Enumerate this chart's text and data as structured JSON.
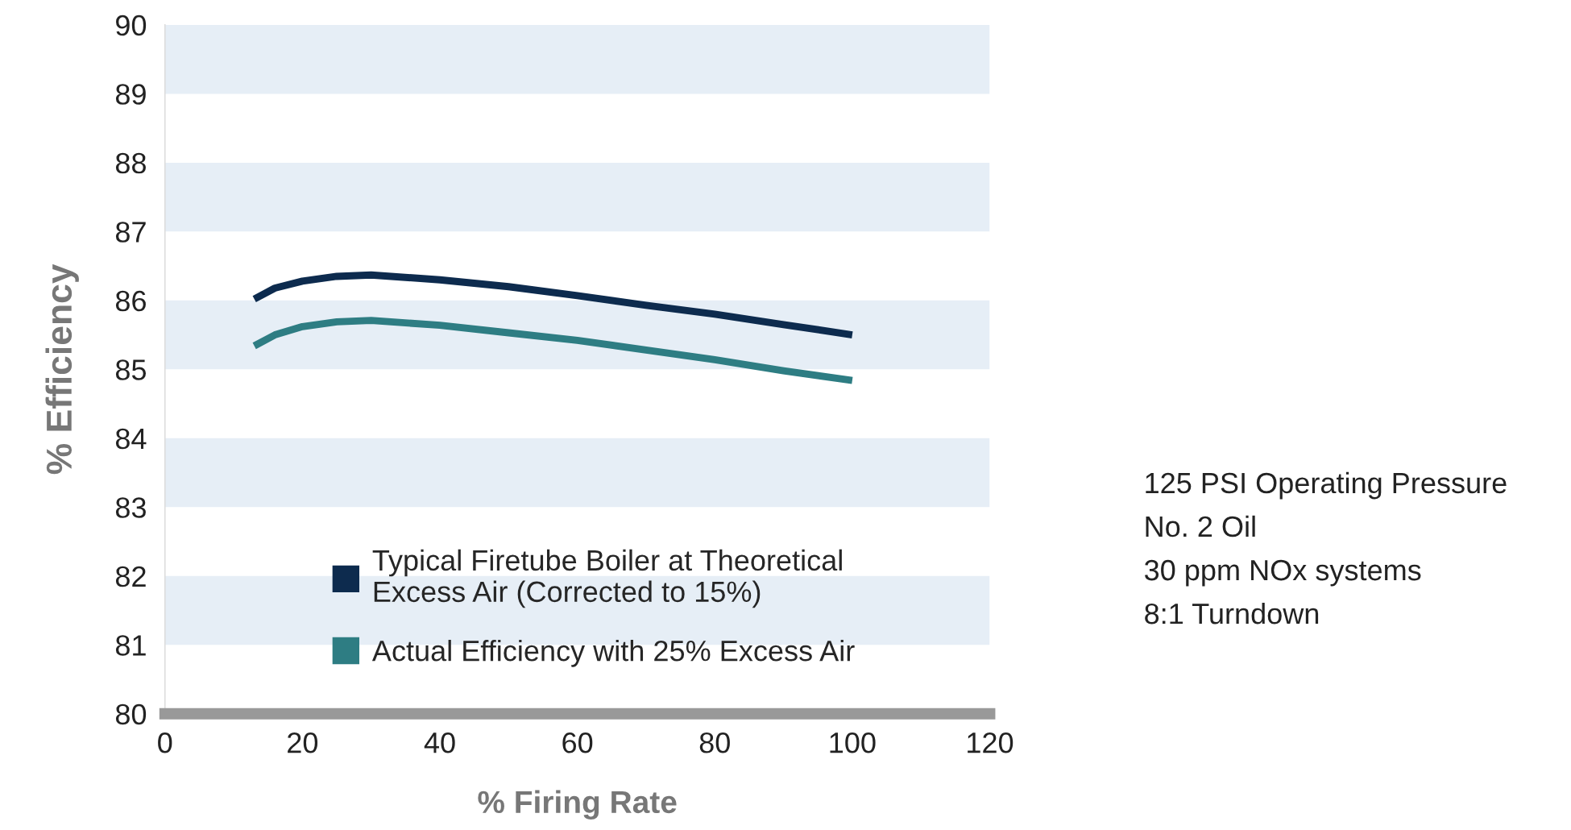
{
  "chart_data": {
    "type": "line",
    "xlabel": "% Firing Rate",
    "ylabel": "% Efficiency",
    "xlim": [
      0,
      120
    ],
    "xticks": [
      0,
      20,
      40,
      60,
      80,
      100,
      120
    ],
    "ylim": [
      80,
      90
    ],
    "yticks": [
      80,
      81,
      82,
      83,
      84,
      85,
      86,
      87,
      88,
      89,
      90
    ],
    "series": [
      {
        "name": "Typical Firetube Boiler at Theoretical\nExcess Air (Corrected to 15%)",
        "color": "#0d2b4e",
        "x": [
          13,
          16,
          20,
          25,
          30,
          40,
          50,
          60,
          70,
          80,
          90,
          100
        ],
        "values": [
          86.02,
          86.18,
          86.28,
          86.35,
          86.37,
          86.3,
          86.2,
          86.07,
          85.93,
          85.8,
          85.65,
          85.5
        ]
      },
      {
        "name": "Actual Efficiency with 25% Excess Air",
        "color": "#2e7d83",
        "x": [
          13,
          16,
          20,
          25,
          30,
          40,
          50,
          60,
          70,
          80,
          90,
          100
        ],
        "values": [
          85.34,
          85.5,
          85.62,
          85.69,
          85.71,
          85.64,
          85.53,
          85.42,
          85.28,
          85.14,
          84.98,
          84.84
        ]
      }
    ],
    "bands": [
      {
        "axis": "y",
        "from": 81,
        "to": 82,
        "color": "#e6eef6"
      },
      {
        "axis": "y",
        "from": 83,
        "to": 84,
        "color": "#e6eef6"
      },
      {
        "axis": "y",
        "from": 85,
        "to": 86,
        "color": "#e6eef6"
      },
      {
        "axis": "y",
        "from": 87,
        "to": 88,
        "color": "#e6eef6"
      },
      {
        "axis": "y",
        "from": 89,
        "to": 90,
        "color": "#e6eef6"
      }
    ],
    "annotations": [
      "125 PSI Operating Pressure",
      "No. 2 Oil",
      "30 ppm NOx systems",
      "8:1 Turndown"
    ],
    "legend": "bottom left",
    "grid": false,
    "marker": "none",
    "line_style": "solid"
  }
}
